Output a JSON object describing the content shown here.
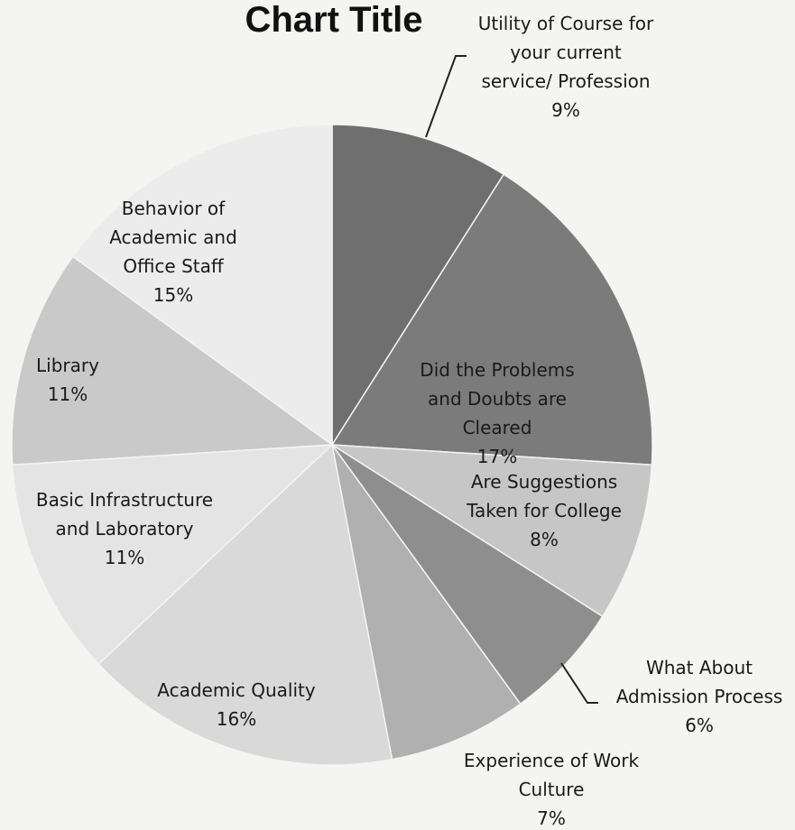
{
  "chart_data": {
    "type": "pie",
    "title": "Chart Title",
    "slices": [
      {
        "label": [
          "Utility of Course for",
          "your current",
          "service/ Profession"
        ],
        "pct_label": "9%",
        "value": 9,
        "color": "#6f6f6f"
      },
      {
        "label": [
          "Did the Problems",
          "and Doubts are",
          "Cleared"
        ],
        "pct_label": "17%",
        "value": 17,
        "color": "#7b7b7b"
      },
      {
        "label": [
          "Are Suggestions",
          "Taken for College"
        ],
        "pct_label": "8%",
        "value": 8,
        "color": "#c6c6c6"
      },
      {
        "label": [
          "What About",
          "Admission Process"
        ],
        "pct_label": "6%",
        "value": 6,
        "color": "#8e8e8e"
      },
      {
        "label": [
          "Experience of Work",
          "Culture"
        ],
        "pct_label": "7%",
        "value": 7,
        "color": "#b0b0b0"
      },
      {
        "label": [
          "Academic Quality"
        ],
        "pct_label": "16%",
        "value": 16,
        "color": "#d9d9d9"
      },
      {
        "label": [
          "Basic Infrastructure",
          "and Laboratory"
        ],
        "pct_label": "11%",
        "value": 11,
        "color": "#e4e4e4"
      },
      {
        "label": [
          "Library"
        ],
        "pct_label": "11%",
        "value": 11,
        "color": "#c9c9c9"
      },
      {
        "label": [
          "Behavior of",
          "Academic and",
          "Office Staff"
        ],
        "pct_label": "15%",
        "value": 15,
        "color": "#ececec"
      }
    ]
  }
}
